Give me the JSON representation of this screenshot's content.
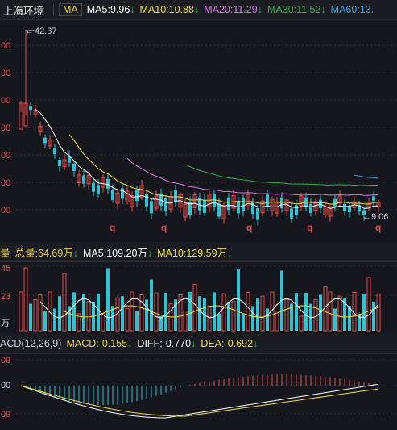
{
  "header": {
    "stock_name": "上海环境",
    "ma_tag": "MA",
    "ma5": {
      "label": "MA5:9.96",
      "color": "#ffffff"
    },
    "ma10": {
      "label": "MA10:10.88",
      "color": "#f0e045"
    },
    "ma20": {
      "label": "MA20:11.29",
      "color": "#d77ee6"
    },
    "ma30": {
      "label": "MA30:11.52",
      "color": "#2fb34a"
    },
    "ma60": {
      "label": "MA60:13.",
      "color": "#3aa5e0"
    }
  },
  "main_chart": {
    "y_labels": [
      "00",
      "00",
      "00",
      "00",
      "00",
      "00",
      "00"
    ],
    "high_annotation": "42.37",
    "low_annotation": "9.06",
    "q_markers": [
      "q",
      "q",
      "q",
      "q",
      "q"
    ],
    "up_color": "#e54a4a",
    "down_color": "#2fc3d4"
  },
  "volume_bar": {
    "label": "量",
    "total": "总量:64.69万",
    "ma5": "MA5:109.20万",
    "ma10": "MA10:129.59万",
    "y_labels": [
      "45",
      "23",
      "万"
    ]
  },
  "macd_bar": {
    "label": "ACD(12,26,9)",
    "macd": "MACD:-0.155",
    "diff": "DIFF:-0.770",
    "dea": "DEA:-0.692",
    "y_labels": [
      "09",
      "00",
      "09"
    ]
  }
}
